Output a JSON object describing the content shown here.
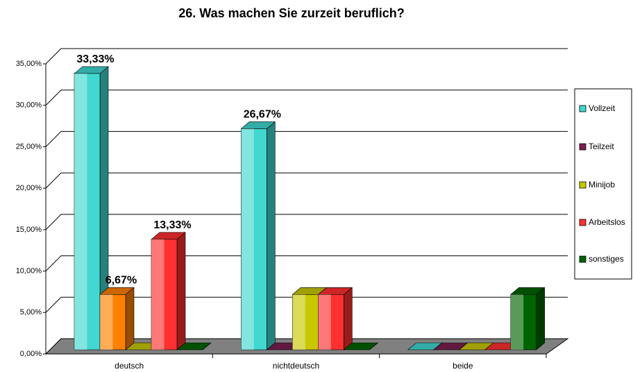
{
  "chart_data": {
    "type": "bar3d",
    "title": "26. Was machen Sie zurzeit beruflich?",
    "categories": [
      "deutsch",
      "nichtdeutsch",
      "beide"
    ],
    "series": [
      {
        "name": "Vollzeit",
        "color": "#40d8d0",
        "values": [
          33.33,
          26.67,
          0
        ],
        "value_labels": [
          "33,33%",
          "26,67%",
          null
        ]
      },
      {
        "name": "Teilzeit",
        "color": "#7b2050",
        "colors": [
          "#ff8000",
          "#7b2050",
          "#7b2050"
        ],
        "values": [
          6.67,
          0,
          0
        ],
        "value_labels": [
          "6,67%",
          null,
          null
        ]
      },
      {
        "name": "Minijob",
        "color": "#c8c800",
        "values": [
          0,
          6.67,
          0
        ],
        "value_labels": [
          null,
          null,
          null
        ]
      },
      {
        "name": "Arbeitslos",
        "color": "#ff3030",
        "values": [
          13.33,
          6.67,
          0
        ],
        "value_labels": [
          "13,33%",
          null,
          null
        ]
      },
      {
        "name": "sonstiges",
        "color": "#006400",
        "values": [
          0,
          0,
          6.67
        ],
        "value_labels": [
          null,
          null,
          null
        ]
      }
    ],
    "ylim": [
      0,
      35
    ],
    "yticks": [
      {
        "value": 0,
        "label": "0,00%"
      },
      {
        "value": 5,
        "label": "5,00%"
      },
      {
        "value": 10,
        "label": "10,00%"
      },
      {
        "value": 15,
        "label": "15,00%"
      },
      {
        "value": 20,
        "label": "20,00%"
      },
      {
        "value": 25,
        "label": "25,00%"
      },
      {
        "value": 30,
        "label": "30,00%"
      },
      {
        "value": 35,
        "label": "35,00%"
      }
    ],
    "grid": true,
    "legend": "right"
  }
}
